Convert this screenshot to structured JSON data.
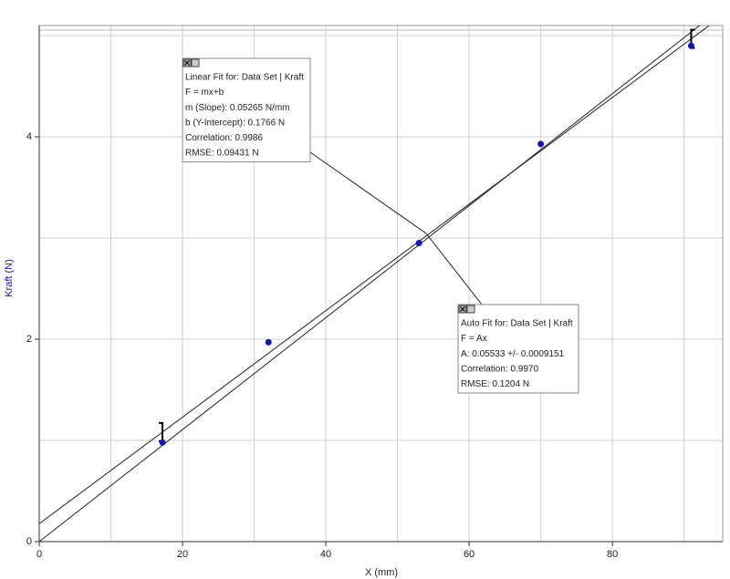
{
  "chart_data": {
    "type": "scatter",
    "x_label": "X (mm)",
    "y_label": "Kraft (N)",
    "xlim": [
      0,
      95.4
    ],
    "ylim": [
      0,
      5.1
    ],
    "xticks": [
      0,
      20,
      40,
      60,
      80
    ],
    "yticks": [
      0,
      2,
      4
    ],
    "xminor": [
      10,
      30,
      50,
      70,
      90
    ],
    "yminor": [
      1,
      3,
      5
    ],
    "grid": true,
    "series": [
      {
        "name": "Kraft",
        "color": "#1414b4",
        "x": [
          17.2,
          32,
          53,
          70,
          91
        ],
        "values": [
          0.98,
          1.97,
          2.95,
          3.93,
          4.9
        ]
      }
    ],
    "fit_range": [
      17.2,
      91
    ],
    "fits": [
      {
        "slope": 0.05265,
        "intercept": 0.1766,
        "lines": [
          "Linear Fit for: Data Set | Kraft",
          "F = mx+b",
          "m (Slope): 0.05265 N/mm",
          "b (Y-Intercept): 0.1766 N",
          "Correlation: 0.9986",
          "RMSE: 0.09431 N"
        ]
      },
      {
        "slope": 0.05533,
        "intercept": 0,
        "lines": [
          "Auto Fit for: Data Set | Kraft",
          "F = Ax",
          "A: 0.05533 +/- 0.0009151",
          "Correlation: 0.9970",
          "RMSE: 0.1204 N"
        ]
      }
    ]
  }
}
